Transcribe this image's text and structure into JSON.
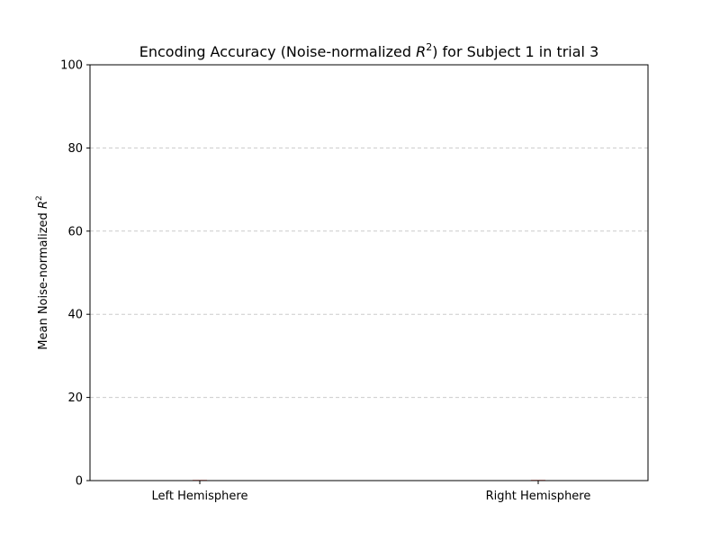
{
  "chart_data": {
    "type": "bar",
    "title_prefix": "Encoding Accuracy (Noise-normalized ",
    "title_var": "R",
    "title_sup": "2",
    "title_suffix": ") for Subject 1 in trial 3",
    "ylabel_prefix": "Mean Noise-normalized ",
    "ylabel_var": "R",
    "ylabel_sup": "2",
    "xlabel": "",
    "categories": [
      "Left Hemisphere",
      "Right Hemisphere"
    ],
    "values": [
      0,
      0
    ],
    "ylim": [
      0,
      100
    ],
    "yticks": [
      "0",
      "20",
      "40",
      "60",
      "80",
      "100"
    ],
    "grid": "y-dashed",
    "colors": {
      "bar": "#f4a6a0",
      "grid": "#cccccc",
      "axis": "#000000"
    }
  }
}
